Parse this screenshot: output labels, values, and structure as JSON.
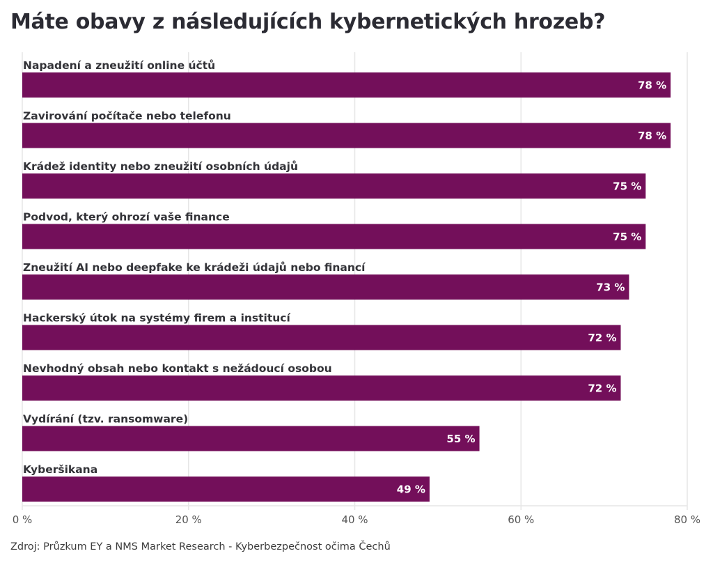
{
  "chart_data": {
    "type": "bar",
    "orientation": "horizontal",
    "title": "Máte obavy z následujících kybernetických hrozeb?",
    "categories": [
      "Napadení a zneužití online účtů",
      "Zavirování počítače nebo telefonu",
      "Krádež identity nebo zneužití osobních údajů",
      "Podvod, který ohrozí vaše finance",
      "Zneužití AI nebo deepfake ke krádeži údajů nebo financí",
      "Hackerský útok na systémy firem a institucí",
      "Nevhodný obsah nebo kontakt s nežádoucí osobou",
      "Vydírání (tzv. ransomware)",
      "Kyberšikana"
    ],
    "values": [
      78,
      78,
      75,
      75,
      73,
      72,
      72,
      55,
      49
    ],
    "value_labels": [
      "78 %",
      "78 %",
      "75 %",
      "75 %",
      "73 %",
      "72 %",
      "72 %",
      "55 %",
      "49 %"
    ],
    "xlabel": "",
    "ylabel": "",
    "xlim": [
      0,
      80
    ],
    "x_ticks": [
      0,
      20,
      40,
      60,
      80
    ],
    "x_tick_labels": [
      "0 %",
      "20 %",
      "40 %",
      "60 %",
      "80 %"
    ],
    "grid": true,
    "legend": "none",
    "bar_color": "#730f5a",
    "grid_color": "#e6e6e6",
    "source": "Zdroj: Průzkum EY a NMS Market Research - Kyberbezpečnost očima Čechů"
  }
}
